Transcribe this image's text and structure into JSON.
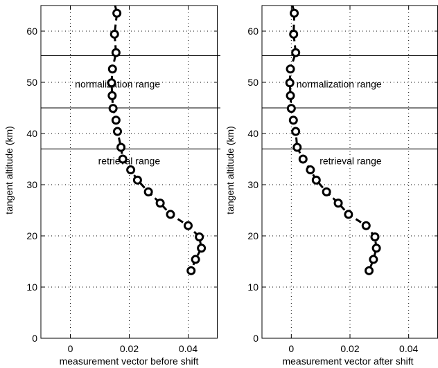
{
  "chart_data": [
    {
      "type": "line",
      "xlabel": "measurement vector before shift",
      "ylabel": "tangent altitude (km)",
      "xlim": [
        -0.01,
        0.05
      ],
      "ylim": [
        0,
        65
      ],
      "xticks": [
        0,
        0.02,
        0.04
      ],
      "xtick_labels": [
        "0",
        "0.02",
        "0.04"
      ],
      "yticks": [
        0,
        10,
        20,
        30,
        40,
        50,
        60
      ],
      "ytick_labels": [
        "0",
        "10",
        "20",
        "30",
        "40",
        "50",
        "60"
      ],
      "grid": true,
      "horizontal_lines": [
        55.2,
        45.0,
        37.0
      ],
      "annotations": [
        {
          "text": "normalization range",
          "x": 0.0305,
          "y": 49
        },
        {
          "text": "retrieval range",
          "x": 0.0305,
          "y": 34
        }
      ],
      "series": [
        {
          "style": "dashed line with circle markers",
          "x": [
            0.0158,
            0.015,
            0.0155,
            0.0143,
            0.014,
            0.0142,
            0.0145,
            0.0155,
            0.016,
            0.0172,
            0.0178,
            0.0205,
            0.0228,
            0.0265,
            0.0305,
            0.034,
            0.04,
            0.0438,
            0.0445,
            0.0425,
            0.041
          ],
          "y": [
            63.5,
            59.4,
            55.8,
            52.6,
            49.9,
            47.4,
            44.9,
            42.6,
            40.4,
            37.3,
            35.0,
            32.9,
            30.9,
            28.6,
            26.4,
            24.2,
            22.0,
            19.8,
            17.6,
            15.4,
            13.2
          ]
        }
      ]
    },
    {
      "type": "line",
      "xlabel": "measurement vector after shift",
      "ylabel": "tangent altitude (km)",
      "xlim": [
        -0.01,
        0.05
      ],
      "ylim": [
        0,
        65
      ],
      "xticks": [
        0,
        0.02,
        0.04
      ],
      "xtick_labels": [
        "0",
        "0.02",
        "0.04"
      ],
      "yticks": [
        0,
        10,
        20,
        30,
        40,
        50,
        60
      ],
      "ytick_labels": [
        "0",
        "10",
        "20",
        "30",
        "40",
        "50",
        "60"
      ],
      "grid": true,
      "horizontal_lines": [
        55.2,
        45.0,
        37.0
      ],
      "annotations": [
        {
          "text": "normalization range",
          "x": 0.0308,
          "y": 49
        },
        {
          "text": "retrieval range",
          "x": 0.0308,
          "y": 34
        }
      ],
      "series": [
        {
          "style": "dashed line with circle markers",
          "x": [
            0.001,
            0.0008,
            0.0015,
            -0.0003,
            -0.0005,
            -0.0003,
            0.0,
            0.0007,
            0.0015,
            0.002,
            0.004,
            0.0065,
            0.0085,
            0.012,
            0.016,
            0.0195,
            0.0255,
            0.0285,
            0.029,
            0.028,
            0.0265
          ],
          "y": [
            63.5,
            59.4,
            55.8,
            52.6,
            49.9,
            47.4,
            44.9,
            42.6,
            40.4,
            37.3,
            35.0,
            32.9,
            30.9,
            28.6,
            26.4,
            24.2,
            22.0,
            19.8,
            17.6,
            15.4,
            13.2
          ]
        }
      ]
    }
  ]
}
